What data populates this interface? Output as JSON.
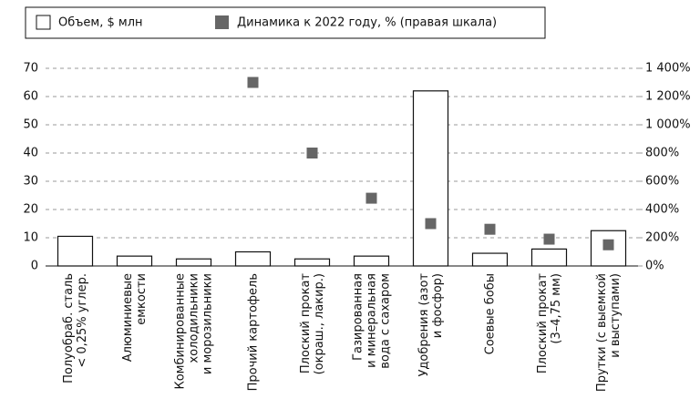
{
  "chart_data": {
    "type": "bar",
    "categories": [
      [
        "Полуобраб. сталь",
        "< 0,25% углер."
      ],
      [
        "Алюминиевые",
        "емкости"
      ],
      [
        "Комбинированные",
        "холодильники",
        "и морозильники"
      ],
      [
        "Прочий картофель"
      ],
      [
        "Плоский прокат",
        "(окраш., лакир.)"
      ],
      [
        "Газированная",
        "и минеральная",
        "вода с сахаром"
      ],
      [
        "Удобрения (азот",
        "и фосфор)"
      ],
      [
        "Соевые бобы"
      ],
      [
        "Плоский прокат",
        "(3–4,75 мм)"
      ],
      [
        "Прутки (с выемкой",
        "и выступами)"
      ]
    ],
    "series": [
      {
        "name": "Объем, $ млн",
        "type": "bar",
        "color": "#ffffff",
        "values": [
          10.5,
          3.5,
          2.5,
          5,
          2.5,
          3.5,
          62,
          4.5,
          6,
          12.5
        ]
      },
      {
        "name": "Динамика к 2022 году, % (правая шкала)",
        "type": "scatter",
        "axis": "y2",
        "color": "#666666",
        "values": [
          null,
          null,
          null,
          1300,
          800,
          480,
          300,
          260,
          190,
          150
        ]
      }
    ],
    "ylim": [
      0,
      70
    ],
    "yticks": [
      0,
      10,
      20,
      30,
      40,
      50,
      60,
      70
    ],
    "y2lim": [
      0,
      1400
    ],
    "y2ticks": [
      {
        "value": 0,
        "label": "0%"
      },
      {
        "value": 200,
        "label": "200%"
      },
      {
        "value": 400,
        "label": "400%"
      },
      {
        "value": 600,
        "label": "600%"
      },
      {
        "value": 800,
        "label": "800%"
      },
      {
        "value": 1000,
        "label": "1 000%"
      },
      {
        "value": 1200,
        "label": "1 200%"
      },
      {
        "value": 1400,
        "label": "1 400%"
      }
    ],
    "grid": true,
    "legend": "top"
  }
}
